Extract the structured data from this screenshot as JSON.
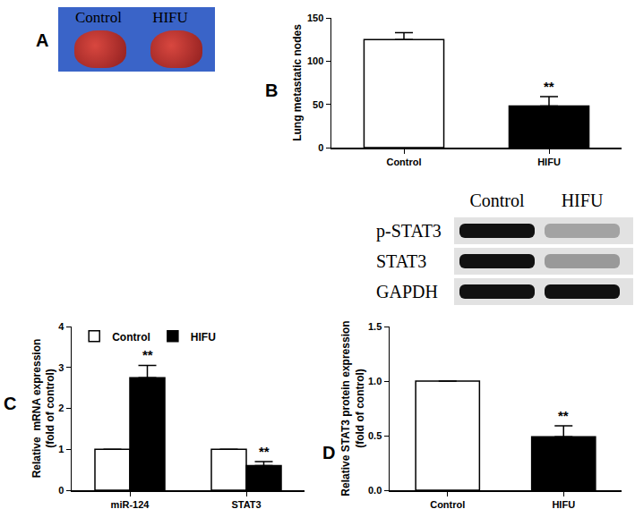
{
  "photo": {
    "label": "A",
    "captions": [
      "Control",
      "HIFU"
    ]
  },
  "blot": {
    "lanes": [
      "Control",
      "HIFU"
    ],
    "rows": [
      "p-STAT3",
      "STAT3",
      "GAPDH"
    ],
    "intensity": [
      [
        1,
        0.3
      ],
      [
        1,
        0.35
      ],
      [
        1,
        1
      ]
    ]
  },
  "chart_data": [
    {
      "label": "B",
      "type": "bar",
      "y_label": "Lung metastatic nodes",
      "categories": [
        "Control",
        "HIFU"
      ],
      "values": [
        125,
        48
      ],
      "errors": [
        8,
        11
      ],
      "colors": [
        "#ffffff",
        "#000000"
      ],
      "ylim": [
        0,
        150
      ],
      "yticks": [
        0,
        50,
        100,
        150
      ],
      "grid": false,
      "annotations": [
        {
          "text": "**",
          "category": "HIFU"
        }
      ]
    },
    {
      "label": "C",
      "type": "bar",
      "y_label": "Relative  mRNA expression\n(fold of control)",
      "categories": [
        "miR-124",
        "STAT3"
      ],
      "series": [
        {
          "name": "Control",
          "color": "#ffffff",
          "values": [
            1,
            1
          ],
          "errors": [
            0,
            0
          ]
        },
        {
          "name": "HIFU",
          "color": "#000000",
          "values": [
            2.75,
            0.6
          ],
          "errors": [
            0.3,
            0.1
          ]
        }
      ],
      "ylim": [
        0,
        4
      ],
      "yticks": [
        0,
        1,
        2,
        3,
        4
      ],
      "grid": false,
      "legend": "top left",
      "annotations": [
        {
          "text": "**",
          "series": "HIFU",
          "category": "miR-124"
        },
        {
          "text": "**",
          "series": "HIFU",
          "category": "STAT3"
        }
      ]
    },
    {
      "label": "D",
      "type": "bar",
      "y_label": "Relative STAT3 protein expression\n(fold of control)",
      "categories": [
        "Control",
        "HIFU"
      ],
      "values": [
        1.0,
        0.49
      ],
      "errors": [
        0,
        0.1
      ],
      "colors": [
        "#ffffff",
        "#000000"
      ],
      "ylim": [
        0,
        1.5
      ],
      "yticks": [
        {
          "value": 0,
          "label": "0.0"
        },
        {
          "value": 0.5,
          "label": "0.5"
        },
        {
          "value": 1,
          "label": "1.0"
        },
        {
          "value": 1.5,
          "label": "1.5"
        }
      ],
      "grid": false,
      "annotations": [
        {
          "text": "**",
          "category": "HIFU"
        }
      ]
    }
  ]
}
